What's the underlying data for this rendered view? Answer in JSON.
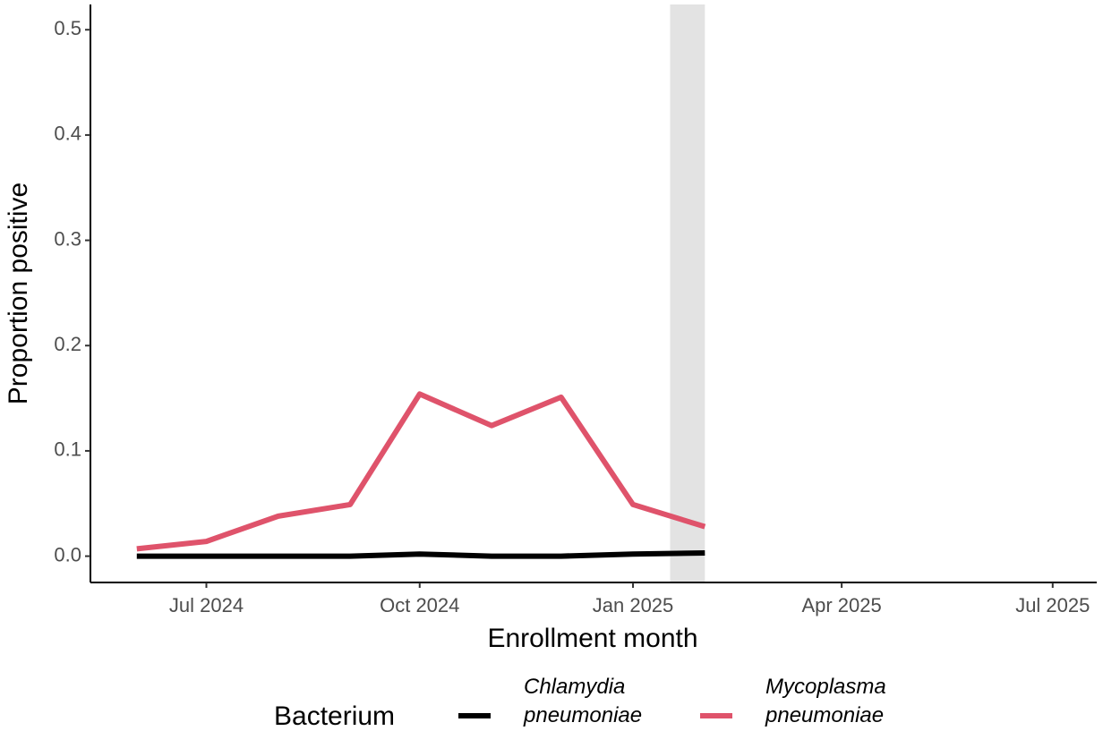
{
  "chart_data": {
    "type": "line",
    "x_label": "Enrollment month",
    "y_label": "Proportion positive",
    "x": [
      "2024-06",
      "2024-07",
      "2024-08",
      "2024-09",
      "2024-10",
      "2024-11",
      "2024-12",
      "2025-01",
      "2025-02"
    ],
    "series": [
      {
        "name": "Chlamydia pneumoniae",
        "color": "#000000",
        "values": [
          0,
          0,
          0,
          0,
          0.002,
          0,
          0,
          0.002,
          0.003
        ]
      },
      {
        "name": "Mycoplasma pneumoniae",
        "color": "#df536b",
        "values": [
          0.007,
          0.014,
          0.038,
          0.049,
          0.154,
          0.124,
          0.151,
          0.049,
          0.028
        ]
      }
    ],
    "xlim": [
      "2024-05-12",
      "2025-07-20"
    ],
    "xticks": [
      {
        "value": "2024-07",
        "label": "Jul 2024"
      },
      {
        "value": "2024-10",
        "label": "Oct 2024"
      },
      {
        "value": "2025-01",
        "label": "Jan 2025"
      },
      {
        "value": "2025-04",
        "label": "Apr 2025"
      },
      {
        "value": "2025-07",
        "label": "Jul 2025"
      }
    ],
    "ylim": [
      -0.025,
      0.524
    ],
    "yticks": [
      {
        "value": 0,
        "label": "0.0"
      },
      {
        "value": 0.1,
        "label": "0.1"
      },
      {
        "value": 0.2,
        "label": "0.2"
      },
      {
        "value": 0.3,
        "label": "0.3"
      },
      {
        "value": 0.4,
        "label": "0.4"
      },
      {
        "value": 0.5,
        "label": "0.5"
      }
    ],
    "shaded_region": [
      "2025-01-17",
      "2025-02-01"
    ],
    "shade_color": "#e3e3e3",
    "grid": false,
    "legend_title": "Bacterium",
    "legend_position": "bottom"
  }
}
